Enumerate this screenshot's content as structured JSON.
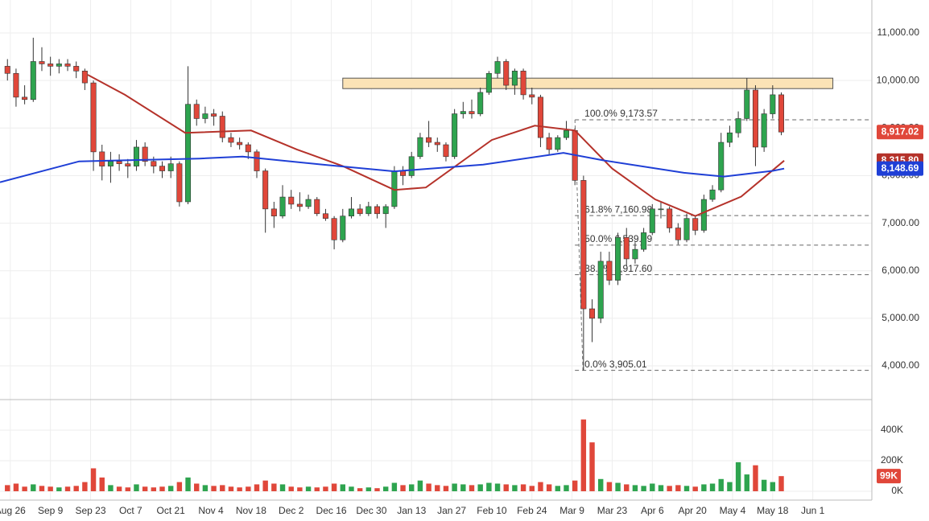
{
  "chart_data": {
    "type": "candlestick",
    "xlim": [
      -3.6,
      300.6
    ],
    "xticks": [
      {
        "value": 0,
        "label": "Aug 26"
      },
      {
        "value": 14,
        "label": "Sep 9"
      },
      {
        "value": 28,
        "label": "Sep 23"
      },
      {
        "value": 42,
        "label": "Oct 7"
      },
      {
        "value": 56,
        "label": "Oct 21"
      },
      {
        "value": 70,
        "label": "Nov 4"
      },
      {
        "value": 84,
        "label": "Nov 18"
      },
      {
        "value": 98,
        "label": "Dec 2"
      },
      {
        "value": 112,
        "label": "Dec 16"
      },
      {
        "value": 126,
        "label": "Dec 30"
      },
      {
        "value": 140,
        "label": "Jan 13"
      },
      {
        "value": 154,
        "label": "Jan 27"
      },
      {
        "value": 168,
        "label": "Feb 10"
      },
      {
        "value": 182,
        "label": "Feb 24"
      },
      {
        "value": 196,
        "label": "Mar 9"
      },
      {
        "value": 210,
        "label": "Mar 23"
      },
      {
        "value": 224,
        "label": "Apr 6"
      },
      {
        "value": 238,
        "label": "Apr 20"
      },
      {
        "value": 252,
        "label": "May 4"
      },
      {
        "value": 266,
        "label": "May 18"
      },
      {
        "value": 280,
        "label": "Jun 1"
      }
    ],
    "ylim": [
      3291,
      11693
    ],
    "yticks": [
      {
        "value": 4000,
        "label": "4,000.00"
      },
      {
        "value": 5000,
        "label": "5,000.00"
      },
      {
        "value": 6000,
        "label": "6,000.00"
      },
      {
        "value": 7000,
        "label": "7,000.00"
      },
      {
        "value": 8000,
        "label": "8,000.00"
      },
      {
        "value": 9000,
        "label": "9,000.00"
      },
      {
        "value": 10000,
        "label": "10,000.00"
      },
      {
        "value": 11000,
        "label": "11,000.00"
      }
    ],
    "grid": true,
    "up_color": "#2ea44f",
    "down_color": "#e0473a",
    "candles": {
      "x": [
        -1,
        2,
        5,
        8,
        11,
        14,
        17,
        20,
        23,
        26,
        29,
        32,
        35,
        38,
        41,
        44,
        47,
        50,
        53,
        56,
        59,
        62,
        65,
        68,
        71,
        74,
        77,
        80,
        83,
        86,
        89,
        92,
        95,
        98,
        101,
        104,
        107,
        110,
        113,
        116,
        119,
        122,
        125,
        128,
        131,
        134,
        137,
        140,
        143,
        146,
        149,
        152,
        155,
        158,
        161,
        164,
        167,
        170,
        173,
        176,
        179,
        182,
        185,
        188,
        191,
        194,
        197,
        200,
        203,
        206,
        209,
        212,
        215,
        218,
        221,
        224,
        227,
        230,
        233,
        236,
        239,
        242,
        245,
        248,
        251,
        254,
        257,
        260,
        263,
        266,
        269
      ],
      "open": [
        10300,
        10150,
        9650,
        9600,
        10400,
        10350,
        10300,
        10350,
        10300,
        10200,
        9950,
        8500,
        8200,
        8300,
        8250,
        8200,
        8600,
        8300,
        8200,
        8100,
        8250,
        7450,
        9500,
        9200,
        9300,
        9250,
        8800,
        8700,
        8650,
        8500,
        8100,
        7300,
        7150,
        7550,
        7400,
        7350,
        7500,
        7200,
        7100,
        6650,
        7150,
        7300,
        7200,
        7350,
        7200,
        7350,
        8100,
        8000,
        8400,
        8800,
        8700,
        8650,
        8400,
        9300,
        9350,
        9300,
        9750,
        10150,
        10400,
        9900,
        10200,
        9700,
        9650,
        8800,
        8550,
        8800,
        8950,
        7900,
        5200,
        5000,
        6200,
        5800,
        6700,
        6250,
        6450,
        6800,
        7300,
        7300,
        6900,
        6650,
        7100,
        6850,
        7500,
        7700,
        8700,
        8900,
        9200,
        9800,
        8600,
        9300,
        9700
      ],
      "high": [
        10450,
        10250,
        9900,
        10900,
        10700,
        10500,
        10450,
        10450,
        10400,
        10250,
        10000,
        8650,
        8500,
        8450,
        8350,
        8750,
        8700,
        8400,
        8300,
        8400,
        8300,
        10300,
        9600,
        9450,
        9400,
        9350,
        8900,
        8800,
        8700,
        8550,
        8150,
        7450,
        7800,
        7700,
        7650,
        7600,
        7550,
        7300,
        7150,
        7300,
        7550,
        7400,
        7450,
        7400,
        7400,
        8200,
        8200,
        8500,
        8900,
        9150,
        8800,
        8700,
        9400,
        9550,
        9600,
        9850,
        10200,
        10500,
        10450,
        10250,
        10250,
        9850,
        9700,
        8900,
        8850,
        9150,
        9000,
        8000,
        5400,
        6400,
        6400,
        6800,
        6900,
        6600,
        6900,
        7400,
        7450,
        7350,
        7000,
        7200,
        7150,
        7600,
        7800,
        8900,
        9050,
        9350,
        10050,
        9900,
        9400,
        9900,
        9750
      ],
      "low": [
        10000,
        9450,
        9500,
        9550,
        10200,
        10100,
        10150,
        10200,
        10050,
        9800,
        8100,
        7900,
        7850,
        8100,
        7950,
        8100,
        8200,
        8050,
        7950,
        7950,
        7350,
        7400,
        9050,
        9100,
        9050,
        8700,
        8600,
        8550,
        8350,
        7950,
        6800,
        6900,
        7100,
        7300,
        7250,
        7300,
        7150,
        7050,
        6450,
        6600,
        7100,
        7150,
        7150,
        7100,
        6900,
        7300,
        7800,
        7950,
        8350,
        8600,
        8500,
        8300,
        8350,
        9200,
        9200,
        9250,
        9700,
        10050,
        9800,
        9700,
        9600,
        9500,
        8600,
        8450,
        8500,
        8750,
        7800,
        3905,
        4500,
        4900,
        5700,
        5700,
        6100,
        6150,
        6400,
        6750,
        7100,
        6800,
        6550,
        6600,
        6750,
        6800,
        7450,
        7650,
        8600,
        8800,
        9150,
        8200,
        8500,
        9200,
        8850
      ],
      "close": [
        10150,
        9650,
        9600,
        10400,
        10350,
        10300,
        10350,
        10300,
        10200,
        9950,
        8500,
        8200,
        8300,
        8250,
        8200,
        8600,
        8300,
        8200,
        8100,
        8250,
        7450,
        9500,
        9200,
        9300,
        9250,
        8800,
        8700,
        8650,
        8500,
        8100,
        7300,
        7150,
        7550,
        7400,
        7350,
        7500,
        7200,
        7100,
        6650,
        7150,
        7300,
        7200,
        7350,
        7200,
        7350,
        8100,
        8000,
        8400,
        8800,
        8700,
        8650,
        8400,
        9300,
        9350,
        9300,
        9750,
        10150,
        10400,
        9900,
        10200,
        9700,
        9650,
        8800,
        8550,
        8800,
        8950,
        7900,
        5200,
        5000,
        6200,
        5800,
        6700,
        6250,
        6450,
        6800,
        7300,
        7300,
        6900,
        6650,
        7100,
        6850,
        7500,
        7700,
        8700,
        8900,
        9200,
        9800,
        8600,
        9300,
        9700,
        8917.02
      ]
    },
    "lines": [
      {
        "color": "#b5322a",
        "x": [
          27,
          40,
          61,
          84,
          100,
          116,
          134,
          145,
          168,
          183,
          197,
          210,
          225,
          239,
          255,
          270
        ],
        "values": [
          10120,
          9700,
          8900,
          8950,
          8550,
          8200,
          7700,
          7750,
          8750,
          9050,
          8950,
          8150,
          7500,
          7150,
          7560,
          8315.8
        ]
      },
      {
        "color": "#1f3fd6",
        "x": [
          -3.6,
          24,
          66,
          81,
          109,
          134,
          165,
          193,
          207,
          235,
          249,
          266,
          270
        ],
        "values": [
          7860,
          8300,
          8360,
          8400,
          8230,
          8090,
          8230,
          8480,
          8320,
          8060,
          7980,
          8100,
          8148.69
        ]
      }
    ],
    "zone": {
      "x": [
        116,
        287
      ],
      "y": [
        9830,
        10050
      ],
      "color": "#fbe3b6"
    },
    "fib": {
      "x_start": 197,
      "levels": [
        {
          "value": 9173.57,
          "label": "100.0% 9,173.57"
        },
        {
          "value": 7160.98,
          "label": "61.8% 7,160.98"
        },
        {
          "value": 6539.29,
          "label": "50.0% 6,539.29"
        },
        {
          "value": 5917.6,
          "label": "38.2% 5,917.60"
        },
        {
          "value": 3905.01,
          "label": "0.0% 3,905.01"
        }
      ]
    },
    "price_labels": [
      {
        "value": 8917.02,
        "label": "8,917.02",
        "color": "#e0473a"
      },
      {
        "value": 8315.8,
        "label": "8,315.80",
        "color": "#b5322a"
      },
      {
        "value": 8148.69,
        "label": "8,148.69",
        "color": "#1f3fd6"
      }
    ],
    "volume": {
      "ylim": [
        -58000,
        600000
      ],
      "yticks": [
        {
          "value": 0,
          "label": "0K"
        },
        {
          "value": 200000,
          "label": "200K"
        },
        {
          "value": 400000,
          "label": "400K"
        }
      ],
      "values": [
        40000,
        50000,
        30000,
        45000,
        35000,
        30000,
        25000,
        30000,
        35000,
        60000,
        150000,
        90000,
        40000,
        30000,
        25000,
        45000,
        30000,
        25000,
        30000,
        35000,
        60000,
        90000,
        50000,
        40000,
        35000,
        40000,
        30000,
        25000,
        30000,
        45000,
        70000,
        50000,
        45000,
        30000,
        25000,
        30000,
        25000,
        30000,
        50000,
        45000,
        30000,
        20000,
        25000,
        20000,
        30000,
        55000,
        40000,
        45000,
        70000,
        50000,
        40000,
        35000,
        50000,
        45000,
        40000,
        45000,
        55000,
        50000,
        45000,
        40000,
        45000,
        35000,
        60000,
        45000,
        35000,
        40000,
        70000,
        470000,
        320000,
        80000,
        60000,
        55000,
        45000,
        40000,
        35000,
        50000,
        40000,
        35000,
        40000,
        35000,
        30000,
        45000,
        50000,
        80000,
        60000,
        190000,
        110000,
        170000,
        75000,
        60000,
        99000
      ],
      "last_label": {
        "value": 99000,
        "label": "99K",
        "color": "#e0473a"
      }
    }
  }
}
